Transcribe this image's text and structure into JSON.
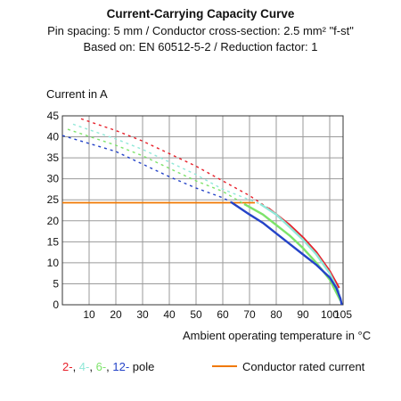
{
  "title": "Current-Carrying Capacity Curve",
  "subtitle_line1": "Pin spacing: 5 mm / Conductor cross-section: 2.5 mm² \"f-st\"",
  "subtitle_line2": "Based on: EN 60512-5-2 / Reduction factor: 1",
  "legend": {
    "pole_items": [
      {
        "text": "2-",
        "color": "#e8202a"
      },
      {
        "text": ", ",
        "color": "#111111"
      },
      {
        "text": "4-",
        "color": "#8fe8d8"
      },
      {
        "text": ", ",
        "color": "#111111"
      },
      {
        "text": "6-",
        "color": "#7de36a"
      },
      {
        "text": ", ",
        "color": "#111111"
      },
      {
        "text": "12-",
        "color": "#2443c8"
      },
      {
        "text": " pole",
        "color": "#111111"
      }
    ],
    "rated_label": "Conductor rated current",
    "rated_color": "#f07800"
  },
  "chart_data": {
    "type": "line",
    "xlabel": "Ambient operating temperature in °C",
    "ylabel": "Current in A",
    "xlim": [
      0,
      105
    ],
    "ylim": [
      0,
      45
    ],
    "xticks": [
      10,
      20,
      30,
      40,
      50,
      60,
      70,
      80,
      90,
      100,
      105
    ],
    "yticks": [
      0,
      5,
      10,
      15,
      20,
      25,
      30,
      35,
      40,
      45
    ],
    "grid": true,
    "conductor_rated_current": 24.3,
    "series": [
      {
        "name": "2-pole",
        "color": "#e8202a",
        "dashed": {
          "x": [
            7,
            20,
            30,
            40,
            50,
            60,
            70,
            77
          ],
          "y": [
            44.3,
            41.5,
            39,
            36,
            33,
            29.5,
            26,
            23
          ]
        },
        "solid": {
          "x": [
            77,
            85,
            90,
            95,
            100,
            103.5
          ],
          "y": [
            23,
            19,
            16,
            12.5,
            8,
            4
          ]
        }
      },
      {
        "name": "4-pole",
        "color": "#8fe8d8",
        "dashed": {
          "x": [
            4,
            20,
            30,
            40,
            50,
            60,
            70,
            74
          ],
          "y": [
            43,
            39.5,
            37,
            34,
            31,
            27.5,
            25,
            24
          ]
        },
        "solid": {
          "x": [
            74,
            80,
            85,
            90,
            95,
            100,
            103.5
          ],
          "y": [
            24,
            21.5,
            18.5,
            15.5,
            12,
            7.5,
            3
          ]
        }
      },
      {
        "name": "6-pole",
        "color": "#7de36a",
        "dashed": {
          "x": [
            2,
            20,
            30,
            40,
            50,
            60,
            68
          ],
          "y": [
            41.8,
            38,
            35.5,
            32.5,
            29.5,
            27,
            24
          ]
        },
        "solid": {
          "x": [
            68,
            75,
            80,
            85,
            90,
            95,
            100,
            104
          ],
          "y": [
            24,
            21.5,
            19,
            16.5,
            13.5,
            10,
            6,
            1
          ]
        }
      },
      {
        "name": "12-pole",
        "color": "#2443c8",
        "dashed": {
          "x": [
            0,
            20,
            30,
            40,
            50,
            60,
            63
          ],
          "y": [
            40.3,
            36.5,
            33.5,
            30.5,
            27.8,
            25.5,
            24.5
          ]
        },
        "solid": {
          "x": [
            63,
            70,
            75,
            80,
            85,
            90,
            95,
            100,
            102.5,
            104,
            104.5
          ],
          "y": [
            24.5,
            21.5,
            19.5,
            17,
            14.5,
            12,
            9.5,
            6.5,
            4,
            1.5,
            0
          ]
        }
      }
    ]
  }
}
